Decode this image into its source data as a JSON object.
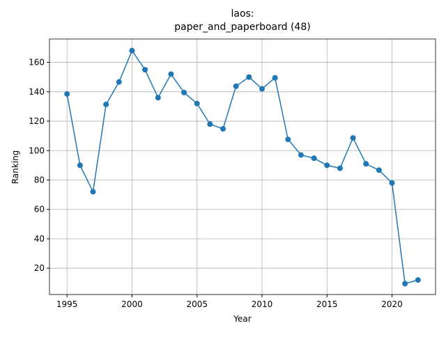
{
  "chart_data": {
    "type": "line",
    "title": "laos:",
    "subtitle": "paper_and_paperboard (48)",
    "x_label": "Year",
    "y_label": "Ranking",
    "x": [
      1995,
      1996,
      1997,
      1998,
      1999,
      2000,
      2001,
      2002,
      2003,
      2004,
      2005,
      2006,
      2007,
      2008,
      2009,
      2010,
      2011,
      2012,
      2013,
      2014,
      2015,
      2016,
      2017,
      2018,
      2019,
      2020,
      2021,
      2022
    ],
    "series": [
      {
        "name": "Ranking",
        "color": "#1f77b4",
        "values": [
          138.5,
          90,
          72,
          131.4,
          146.7,
          168,
          155,
          136,
          152,
          139.5,
          132,
          118,
          114.8,
          143.8,
          150,
          142,
          149.5,
          107.6,
          97,
          94.8,
          90,
          88,
          108.6,
          91,
          86.7,
          78,
          9.5,
          12
        ]
      }
    ],
    "xlim": [
      1993.65,
      2023.35
    ],
    "xticks": [
      1995,
      2000,
      2005,
      2010,
      2015,
      2020
    ],
    "ylim": [
      2.1,
      175.9
    ],
    "yticks": [
      20,
      40,
      60,
      80,
      100,
      120,
      140,
      160
    ],
    "grid": true
  }
}
